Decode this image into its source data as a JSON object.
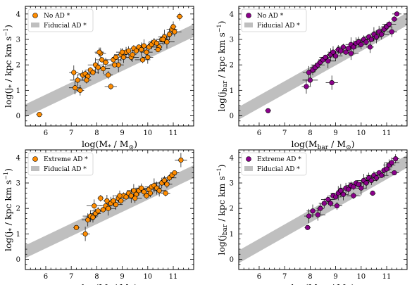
{
  "colors": {
    "orange": "#ff8c00",
    "purple": "#8b008b",
    "band": "#bfbfbf",
    "edge": "#000000"
  },
  "chart_data": [
    {
      "type": "scatter",
      "xlabel": "log(M* / M⊙)",
      "ylabel": "log(j* / kpc km s⁻¹)",
      "xlim": [
        5.2,
        11.8
      ],
      "ylim": [
        -0.4,
        4.3
      ],
      "xticks": [
        "6",
        "7",
        "8",
        "9",
        "10",
        "11"
      ],
      "yticks": [
        "0",
        "1",
        "2",
        "3",
        "4"
      ],
      "legend_position": "top-left",
      "series": [
        {
          "name": "No AD *",
          "color": "#ff8c00",
          "marker": "circle",
          "x": [
            5.75,
            7.1,
            7.15,
            7.25,
            7.35,
            7.45,
            7.55,
            7.65,
            7.75,
            7.85,
            7.95,
            8.05,
            8.15,
            8.25,
            8.35,
            8.45,
            8.55,
            8.65,
            8.75,
            8.85,
            8.95,
            9.05,
            9.15,
            9.25,
            9.35,
            9.45,
            9.55,
            9.65,
            9.75,
            9.85,
            9.95,
            10.05,
            10.15,
            10.25,
            10.35,
            10.45,
            10.55,
            10.65,
            10.75,
            10.85,
            10.95,
            11.05,
            11.25,
            7.6,
            8.2,
            8.7,
            9.4,
            10.0,
            10.6,
            11.0,
            8.1,
            9.0,
            9.8,
            10.4
          ],
          "y": [
            0.05,
            1.7,
            1.1,
            1.4,
            1.0,
            1.6,
            1.65,
            1.55,
            1.8,
            1.7,
            2.0,
            1.9,
            2.45,
            1.85,
            2.1,
            1.6,
            1.15,
            2.2,
            2.3,
            2.0,
            2.4,
            2.3,
            2.5,
            2.55,
            2.3,
            2.65,
            2.55,
            2.7,
            2.6,
            2.75,
            2.5,
            2.7,
            2.8,
            2.9,
            2.85,
            2.7,
            3.0,
            3.1,
            2.9,
            3.2,
            3.4,
            3.3,
            3.9,
            1.4,
            2.2,
            2.0,
            2.4,
            2.3,
            3.0,
            3.5,
            2.5,
            2.5,
            2.2,
            2.6
          ]
        },
        {
          "name": "Fiducial AD *",
          "color": "#bfbfbf",
          "type": "band",
          "x": [
            5.2,
            11.8
          ],
          "y_lower": [
            -0.05,
            3.1
          ],
          "y_upper": [
            0.45,
            3.6
          ]
        }
      ]
    },
    {
      "type": "scatter",
      "xlabel": "log(Mbar / M⊙)",
      "ylabel": "log(jbar / kpc km s⁻¹)",
      "xlim": [
        5.2,
        11.8
      ],
      "ylim": [
        -0.4,
        4.3
      ],
      "xticks": [
        "6",
        "7",
        "8",
        "9",
        "10",
        "11"
      ],
      "yticks": [
        "0",
        "1",
        "2",
        "3",
        "4"
      ],
      "legend_position": "top-left",
      "series": [
        {
          "name": "No AD *",
          "color": "#8b008b",
          "marker": "circle",
          "x": [
            6.35,
            7.85,
            7.95,
            8.0,
            8.1,
            8.2,
            8.3,
            8.4,
            8.5,
            8.6,
            8.7,
            8.8,
            8.9,
            9.0,
            9.1,
            9.2,
            9.3,
            9.4,
            9.5,
            9.6,
            9.7,
            9.8,
            9.9,
            10.0,
            10.1,
            10.2,
            10.3,
            10.4,
            10.5,
            10.6,
            10.7,
            10.8,
            10.9,
            11.0,
            11.1,
            11.3,
            11.4,
            8.85,
            9.6,
            10.35,
            11.2
          ],
          "y": [
            0.2,
            1.15,
            1.7,
            1.4,
            1.8,
            1.9,
            2.0,
            2.1,
            2.2,
            2.3,
            2.15,
            2.4,
            2.5,
            2.35,
            2.6,
            2.55,
            2.7,
            2.5,
            2.65,
            2.8,
            2.7,
            2.85,
            2.9,
            2.8,
            3.0,
            2.9,
            3.1,
            3.0,
            3.2,
            3.1,
            3.3,
            3.2,
            3.4,
            3.5,
            3.6,
            3.8,
            4.0,
            1.3,
            2.45,
            2.7,
            3.3
          ]
        },
        {
          "name": "Fiducial AD *",
          "color": "#bfbfbf",
          "type": "band",
          "x": [
            5.2,
            11.8
          ],
          "y_lower": [
            -0.15,
            3.55
          ],
          "y_upper": [
            0.35,
            4.05
          ]
        }
      ]
    },
    {
      "type": "scatter",
      "xlabel": "log(M* / M⊙)",
      "ylabel": "log(j* / kpc km s⁻¹)",
      "xlim": [
        5.2,
        11.8
      ],
      "ylim": [
        -0.4,
        4.3
      ],
      "xticks": [
        "6",
        "7",
        "8",
        "9",
        "10",
        "11"
      ],
      "yticks": [
        "0",
        "1",
        "2",
        "3",
        "4"
      ],
      "legend_position": "top-left",
      "series": [
        {
          "name": "Extreme AD *",
          "color": "#ff8c00",
          "marker": "circle",
          "x": [
            7.2,
            7.55,
            7.65,
            7.75,
            7.85,
            7.95,
            8.05,
            8.15,
            8.25,
            8.35,
            8.45,
            8.55,
            8.65,
            8.75,
            8.85,
            8.95,
            9.05,
            9.15,
            9.25,
            9.35,
            9.45,
            9.55,
            9.65,
            9.75,
            9.85,
            9.95,
            10.05,
            10.15,
            10.25,
            10.35,
            10.45,
            10.55,
            10.65,
            10.75,
            10.85,
            10.95,
            11.05,
            11.3,
            7.9,
            8.4,
            8.9,
            9.5,
            10.1,
            10.7
          ],
          "y": [
            1.25,
            1.0,
            1.55,
            1.7,
            1.65,
            1.8,
            1.9,
            2.4,
            1.95,
            2.1,
            2.0,
            2.2,
            2.3,
            2.15,
            2.4,
            2.3,
            2.5,
            2.45,
            2.6,
            2.5,
            2.7,
            2.55,
            2.7,
            2.8,
            2.65,
            2.5,
            2.75,
            2.85,
            2.9,
            2.8,
            2.7,
            3.0,
            3.1,
            2.95,
            3.2,
            3.3,
            3.4,
            3.9,
            2.1,
            2.3,
            2.5,
            2.4,
            2.6,
            2.6
          ]
        },
        {
          "name": "Fiducial AD *",
          "color": "#bfbfbf",
          "type": "band",
          "x": [
            5.2,
            11.8
          ],
          "y_lower": [
            0.05,
            3.2
          ],
          "y_upper": [
            0.55,
            3.7
          ]
        }
      ]
    },
    {
      "type": "scatter",
      "xlabel": "log(Mbar / M⊙)",
      "ylabel": "log(jbar / kpc km s⁻¹)",
      "xlim": [
        5.2,
        11.8
      ],
      "ylim": [
        -0.4,
        4.3
      ],
      "xticks": [
        "6",
        "7",
        "8",
        "9",
        "10",
        "11"
      ],
      "yticks": [
        "0",
        "1",
        "2",
        "3",
        "4"
      ],
      "legend_position": "top-left",
      "series": [
        {
          "name": "Extreme AD *",
          "color": "#8b008b",
          "marker": "circle",
          "x": [
            7.9,
            7.95,
            8.1,
            8.3,
            8.4,
            8.55,
            8.7,
            8.8,
            8.9,
            9.0,
            9.1,
            9.2,
            9.3,
            9.4,
            9.5,
            9.6,
            9.7,
            9.8,
            9.9,
            10.0,
            10.1,
            10.2,
            10.3,
            10.4,
            10.5,
            10.6,
            10.7,
            10.8,
            10.9,
            11.0,
            11.1,
            11.2,
            11.35,
            9.05,
            9.7,
            10.45,
            11.3
          ],
          "y": [
            1.25,
            1.7,
            1.9,
            1.75,
            2.0,
            2.2,
            2.35,
            2.2,
            2.5,
            2.45,
            2.6,
            2.7,
            2.55,
            2.8,
            2.75,
            2.9,
            2.85,
            3.0,
            2.95,
            2.8,
            3.1,
            3.0,
            3.2,
            3.1,
            3.3,
            3.2,
            3.4,
            3.3,
            3.5,
            3.55,
            3.7,
            3.8,
            3.95,
            2.1,
            2.5,
            2.6,
            3.4
          ]
        },
        {
          "name": "Fiducial AD *",
          "color": "#bfbfbf",
          "type": "band",
          "x": [
            5.2,
            11.8
          ],
          "y_lower": [
            -0.15,
            3.6
          ],
          "y_upper": [
            0.35,
            4.1
          ]
        }
      ]
    }
  ]
}
